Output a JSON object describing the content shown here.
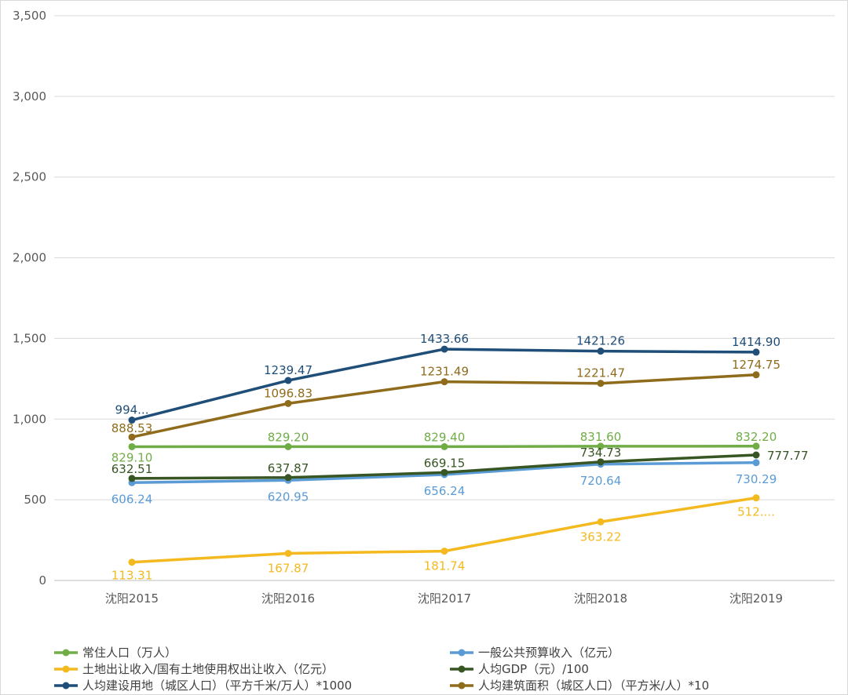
{
  "chart_data": {
    "type": "line",
    "categories": [
      "沈阳2015",
      "沈阳2016",
      "沈阳2017",
      "沈阳2018",
      "沈阳2019"
    ],
    "ylim": [
      0,
      3500
    ],
    "yticks": [
      0,
      500,
      1000,
      1500,
      2000,
      2500,
      3000,
      3500
    ],
    "ytick_labels": [
      "0",
      "500",
      "1,000",
      "1,500",
      "2,000",
      "2,500",
      "3,000",
      "3,500"
    ],
    "grid": "horizontal",
    "legend_position": "bottom",
    "series": [
      {
        "name": "常住人口（万人）",
        "color": "#70ad47",
        "values": [
          829.1,
          829.2,
          829.4,
          831.6,
          832.2
        ],
        "labels": [
          "829.10",
          "829.20",
          "829.40",
          "831.60",
          "832.20"
        ]
      },
      {
        "name": "一般公共预算收入（亿元）",
        "color": "#5b9bd5",
        "values": [
          606.24,
          620.95,
          656.24,
          720.64,
          730.29
        ],
        "labels": [
          "606.24",
          "620.95",
          "656.24",
          "720.64",
          "730.29"
        ]
      },
      {
        "name": "土地出让收入/国有土地使用权出让收入（亿元）",
        "color": "#f4b91e",
        "values": [
          113.31,
          167.87,
          181.74,
          363.22,
          512.0
        ],
        "labels": [
          "113.31",
          "167.87",
          "181.74",
          "363.22",
          "512...."
        ]
      },
      {
        "name": "人均GDP（元）/100",
        "color": "#375623",
        "values": [
          632.51,
          637.87,
          669.15,
          734.73,
          777.77
        ],
        "labels": [
          "632.51",
          "637.87",
          "669.15",
          "734.73",
          "777.77"
        ]
      },
      {
        "name": "人均建设用地（城区人口）（平方千米/万人）*1000",
        "color": "#1f4e79",
        "values": [
          994.0,
          1239.47,
          1433.66,
          1421.26,
          1414.9
        ],
        "labels": [
          "994...",
          "1239.47",
          "1433.66",
          "1421.26",
          "1414.90"
        ]
      },
      {
        "name": "人均建筑面积（城区人口）（平方米/人）*10",
        "color": "#8f6b1c",
        "values": [
          888.53,
          1096.83,
          1231.49,
          1221.47,
          1274.75
        ],
        "labels": [
          "888.53",
          "1096.83",
          "1231.49",
          "1221.47",
          "1274.75"
        ]
      }
    ]
  }
}
